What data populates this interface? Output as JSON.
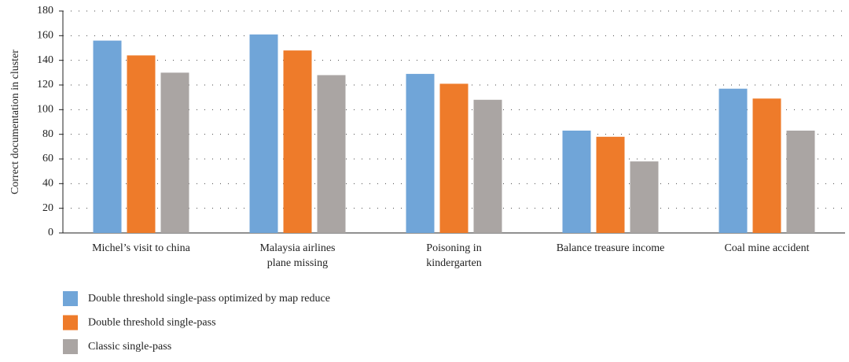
{
  "chart_data": {
    "type": "bar",
    "y_label": "Correct documentation in cluster",
    "categories": [
      "Michel’s visit to china",
      "Malaysia airlines\nplane missing",
      "Poisoning in\nkindergarten",
      "Balance treasure income",
      "Coal mine accident"
    ],
    "series": [
      {
        "name": "Double threshold single-pass optimized by map reduce",
        "color": "#70a5d8",
        "values": [
          156,
          161,
          129,
          83,
          117
        ]
      },
      {
        "name": "Double threshold single-pass",
        "color": "#ee7b2a",
        "values": [
          144,
          148,
          121,
          78,
          109
        ]
      },
      {
        "name": "Classic single-pass",
        "color": "#aaa5a3",
        "values": [
          130,
          128,
          108,
          58,
          83
        ]
      }
    ],
    "ylim": [
      0,
      180
    ],
    "yticks": [
      0,
      20,
      40,
      60,
      80,
      100,
      120,
      140,
      160,
      180
    ],
    "grid": true
  }
}
